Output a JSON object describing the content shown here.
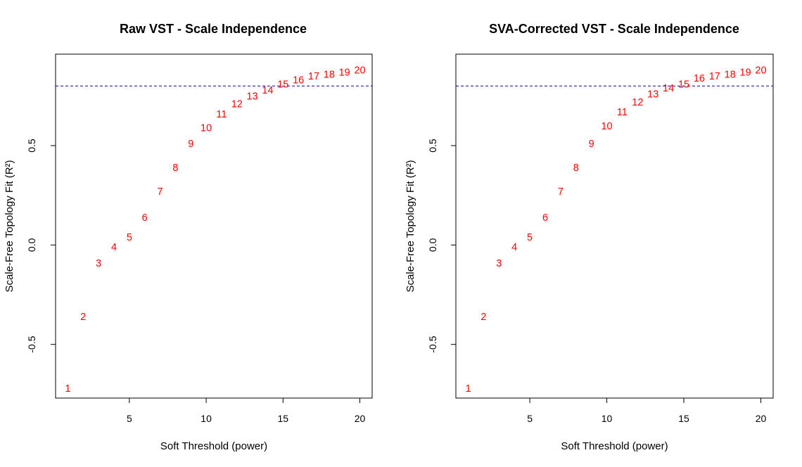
{
  "chart_data": [
    {
      "type": "scatter",
      "title": "Raw VST - Scale Independence",
      "xlabel": "Soft Threshold (power)",
      "ylabel": "Scale-Free Topology Fit (R²)",
      "xlim": [
        0.2,
        20.8
      ],
      "ylim": [
        -0.77,
        0.96
      ],
      "xticks": [
        5,
        10,
        15,
        20
      ],
      "yticks": [
        -0.5,
        0.0,
        0.5
      ],
      "ytick_labels": [
        "-0.5",
        "0.0",
        "0.5"
      ],
      "hline": 0.8,
      "hline_color": "#0000cc",
      "point_color": "#ff0000",
      "points": [
        {
          "x": 1,
          "y": -0.72,
          "label": "1"
        },
        {
          "x": 2,
          "y": -0.36,
          "label": "2"
        },
        {
          "x": 3,
          "y": -0.09,
          "label": "3"
        },
        {
          "x": 4,
          "y": -0.01,
          "label": "4"
        },
        {
          "x": 5,
          "y": 0.04,
          "label": "5"
        },
        {
          "x": 6,
          "y": 0.14,
          "label": "6"
        },
        {
          "x": 7,
          "y": 0.27,
          "label": "7"
        },
        {
          "x": 8,
          "y": 0.39,
          "label": "8"
        },
        {
          "x": 9,
          "y": 0.51,
          "label": "9"
        },
        {
          "x": 10,
          "y": 0.59,
          "label": "10"
        },
        {
          "x": 11,
          "y": 0.66,
          "label": "11"
        },
        {
          "x": 12,
          "y": 0.71,
          "label": "12"
        },
        {
          "x": 13,
          "y": 0.75,
          "label": "13"
        },
        {
          "x": 14,
          "y": 0.78,
          "label": "14"
        },
        {
          "x": 15,
          "y": 0.81,
          "label": "15"
        },
        {
          "x": 16,
          "y": 0.83,
          "label": "16"
        },
        {
          "x": 17,
          "y": 0.85,
          "label": "17"
        },
        {
          "x": 18,
          "y": 0.86,
          "label": "18"
        },
        {
          "x": 19,
          "y": 0.87,
          "label": "19"
        },
        {
          "x": 20,
          "y": 0.88,
          "label": "20"
        }
      ]
    },
    {
      "type": "scatter",
      "title": "SVA-Corrected VST - Scale Independence",
      "xlabel": "Soft Threshold (power)",
      "ylabel": "Scale-Free Topology Fit (R²)",
      "xlim": [
        0.2,
        20.8
      ],
      "ylim": [
        -0.77,
        0.96
      ],
      "xticks": [
        5,
        10,
        15,
        20
      ],
      "yticks": [
        -0.5,
        0.0,
        0.5
      ],
      "ytick_labels": [
        "-0.5",
        "0.0",
        "0.5"
      ],
      "hline": 0.8,
      "hline_color": "#0000cc",
      "point_color": "#ff0000",
      "points": [
        {
          "x": 1,
          "y": -0.72,
          "label": "1"
        },
        {
          "x": 2,
          "y": -0.36,
          "label": "2"
        },
        {
          "x": 3,
          "y": -0.09,
          "label": "3"
        },
        {
          "x": 4,
          "y": -0.01,
          "label": "4"
        },
        {
          "x": 5,
          "y": 0.04,
          "label": "5"
        },
        {
          "x": 6,
          "y": 0.14,
          "label": "6"
        },
        {
          "x": 7,
          "y": 0.27,
          "label": "7"
        },
        {
          "x": 8,
          "y": 0.39,
          "label": "8"
        },
        {
          "x": 9,
          "y": 0.51,
          "label": "9"
        },
        {
          "x": 10,
          "y": 0.6,
          "label": "10"
        },
        {
          "x": 11,
          "y": 0.67,
          "label": "11"
        },
        {
          "x": 12,
          "y": 0.72,
          "label": "12"
        },
        {
          "x": 13,
          "y": 0.76,
          "label": "13"
        },
        {
          "x": 14,
          "y": 0.79,
          "label": "14"
        },
        {
          "x": 15,
          "y": 0.81,
          "label": "15"
        },
        {
          "x": 16,
          "y": 0.84,
          "label": "16"
        },
        {
          "x": 17,
          "y": 0.85,
          "label": "17"
        },
        {
          "x": 18,
          "y": 0.86,
          "label": "18"
        },
        {
          "x": 19,
          "y": 0.87,
          "label": "19"
        },
        {
          "x": 20,
          "y": 0.88,
          "label": "20"
        }
      ]
    }
  ]
}
